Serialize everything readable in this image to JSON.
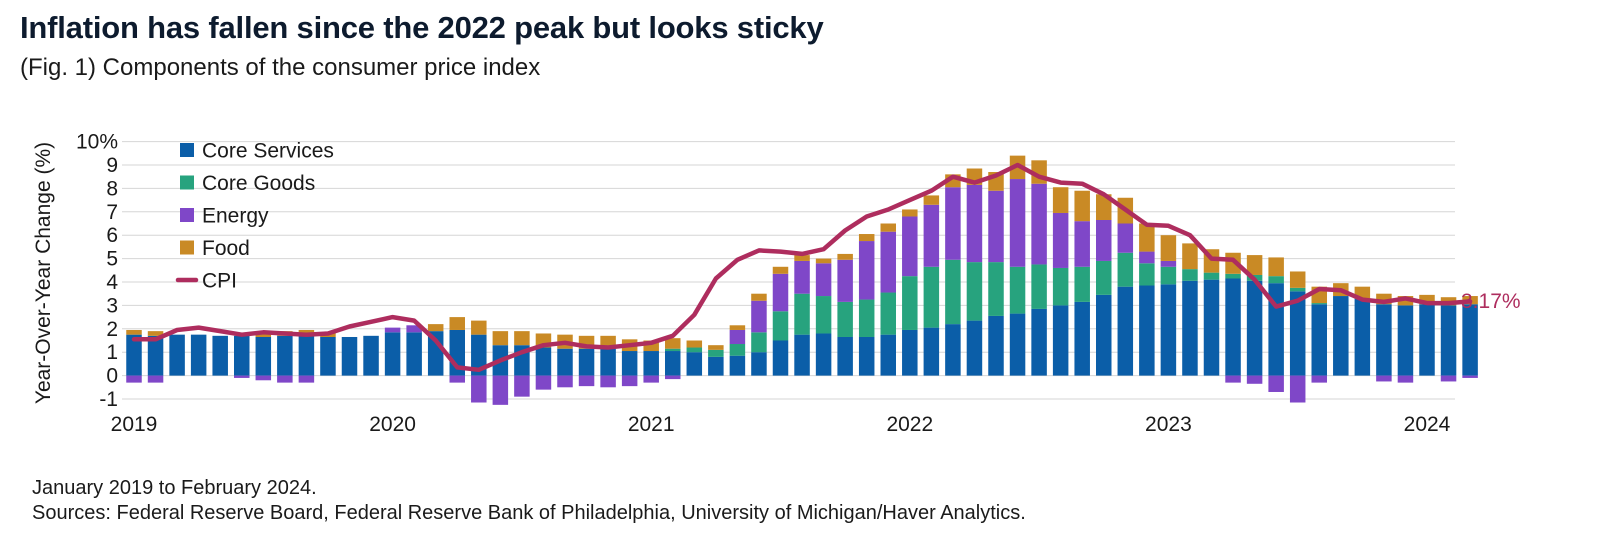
{
  "title": "Inflation has fallen since the 2022 peak but looks sticky",
  "subtitle": "(Fig. 1) Components of the consumer price index",
  "footnote": {
    "range": "January 2019 to February 2024.",
    "sources": "Sources: Federal Reserve Board, Federal Reserve Bank of Philadelphia, University of Michigan/Haver Analytics."
  },
  "colors": {
    "core_services": "#0b5ea8",
    "core_goods": "#27a37e",
    "energy": "#7f47c8",
    "food": "#c98a25",
    "cpi": "#ae2d5e",
    "grid": "#d6d6d6"
  },
  "chart_data": {
    "type": "bar",
    "stacked": true,
    "x_type": "monthly",
    "x_start": "January 2019",
    "x_end": "February 2024",
    "ylabel": "Year-Over-Year Change (%)",
    "ylim": [
      -1,
      10
    ],
    "yticks": [
      -1,
      0,
      1,
      2,
      3,
      4,
      5,
      6,
      7,
      8,
      9,
      10
    ],
    "ytick_labels": [
      "-1",
      "0",
      "1",
      "2",
      "3",
      "4",
      "5",
      "6",
      "7",
      "8",
      "9",
      "10%"
    ],
    "xtick_labels": [
      "2019",
      "2020",
      "2021",
      "2022",
      "2023",
      "2024"
    ],
    "grid": true,
    "legend_position": "top-left",
    "end_label": "3.17%",
    "series": [
      {
        "name": "Core Services",
        "kind": "bar",
        "values": [
          1.75,
          1.7,
          1.75,
          1.75,
          1.7,
          1.7,
          1.65,
          1.7,
          1.7,
          1.65,
          1.65,
          1.7,
          1.85,
          1.85,
          1.9,
          1.95,
          1.75,
          1.3,
          1.3,
          1.2,
          1.15,
          1.15,
          1.15,
          1.05,
          1.05,
          1.05,
          1.0,
          0.8,
          0.85,
          1.0,
          1.5,
          1.75,
          1.8,
          1.65,
          1.65,
          1.75,
          1.95,
          2.05,
          2.2,
          2.35,
          2.55,
          2.65,
          2.85,
          3.0,
          3.15,
          3.45,
          3.8,
          3.85,
          3.9,
          4.05,
          4.1,
          4.15,
          4.05,
          3.95,
          3.6,
          3.05,
          3.4,
          3.3,
          3.05,
          3.0,
          3.05,
          3.0,
          3.05
        ]
      },
      {
        "name": "Core Goods",
        "kind": "bar",
        "values": [
          0.0,
          0.0,
          0.0,
          0.0,
          0.0,
          0.0,
          0.0,
          0.0,
          0.0,
          0.0,
          0.0,
          0.0,
          0.0,
          0.0,
          0.0,
          0.0,
          0.0,
          0.0,
          0.0,
          0.0,
          0.0,
          0.0,
          0.0,
          0.0,
          0.0,
          0.1,
          0.2,
          0.3,
          0.5,
          0.85,
          1.25,
          1.75,
          1.6,
          1.5,
          1.6,
          1.8,
          2.3,
          2.6,
          2.75,
          2.5,
          2.3,
          2.0,
          1.9,
          1.6,
          1.5,
          1.45,
          1.45,
          0.95,
          0.75,
          0.5,
          0.3,
          0.2,
          0.25,
          0.3,
          0.15,
          0.05,
          0.0,
          0.0,
          0.0,
          0.0,
          0.0,
          0.0,
          0.0
        ]
      },
      {
        "name": "Energy",
        "kind": "bar",
        "values": [
          -0.3,
          -0.3,
          0.0,
          0.0,
          0.0,
          -0.1,
          -0.2,
          -0.3,
          -0.3,
          0.0,
          0.0,
          0.0,
          0.2,
          0.3,
          0.0,
          -0.3,
          -1.15,
          -1.25,
          -0.9,
          -0.6,
          -0.5,
          -0.45,
          -0.5,
          -0.45,
          -0.3,
          -0.15,
          0.0,
          0.0,
          0.6,
          1.35,
          1.6,
          1.4,
          1.4,
          1.8,
          2.5,
          2.6,
          2.55,
          2.65,
          3.1,
          3.3,
          3.05,
          3.75,
          3.45,
          2.35,
          1.95,
          1.75,
          1.25,
          0.5,
          0.25,
          0.0,
          0.0,
          -0.3,
          -0.35,
          -0.7,
          -1.15,
          -0.3,
          0.0,
          0.0,
          -0.25,
          -0.3,
          0.0,
          -0.25,
          -0.1
        ]
      },
      {
        "name": "Food",
        "kind": "bar",
        "values": [
          0.2,
          0.2,
          0.0,
          0.0,
          0.0,
          0.0,
          0.2,
          0.2,
          0.25,
          0.2,
          0.0,
          0.0,
          0.0,
          0.0,
          0.3,
          0.55,
          0.6,
          0.6,
          0.6,
          0.6,
          0.6,
          0.55,
          0.55,
          0.5,
          0.45,
          0.45,
          0.3,
          0.2,
          0.2,
          0.3,
          0.3,
          0.25,
          0.2,
          0.25,
          0.3,
          0.35,
          0.3,
          0.4,
          0.55,
          0.7,
          0.8,
          1.0,
          1.0,
          1.1,
          1.3,
          1.1,
          1.1,
          1.2,
          1.1,
          1.1,
          1.0,
          0.9,
          0.85,
          0.8,
          0.7,
          0.7,
          0.55,
          0.5,
          0.45,
          0.4,
          0.4,
          0.35,
          0.35
        ]
      },
      {
        "name": "CPI",
        "kind": "line",
        "values": [
          1.55,
          1.55,
          1.95,
          2.05,
          1.9,
          1.75,
          1.85,
          1.8,
          1.75,
          1.8,
          2.1,
          2.3,
          2.5,
          2.35,
          1.5,
          0.35,
          0.25,
          0.65,
          1.0,
          1.3,
          1.4,
          1.25,
          1.2,
          1.3,
          1.4,
          1.7,
          2.6,
          4.15,
          4.95,
          5.35,
          5.3,
          5.2,
          5.4,
          6.2,
          6.8,
          7.1,
          7.5,
          7.9,
          8.5,
          8.25,
          8.55,
          9.0,
          8.5,
          8.25,
          8.2,
          7.75,
          7.1,
          6.45,
          6.4,
          6.0,
          5.0,
          4.95,
          4.1,
          2.95,
          3.2,
          3.7,
          3.65,
          3.25,
          3.15,
          3.3,
          3.1,
          3.1,
          3.17
        ]
      }
    ]
  }
}
